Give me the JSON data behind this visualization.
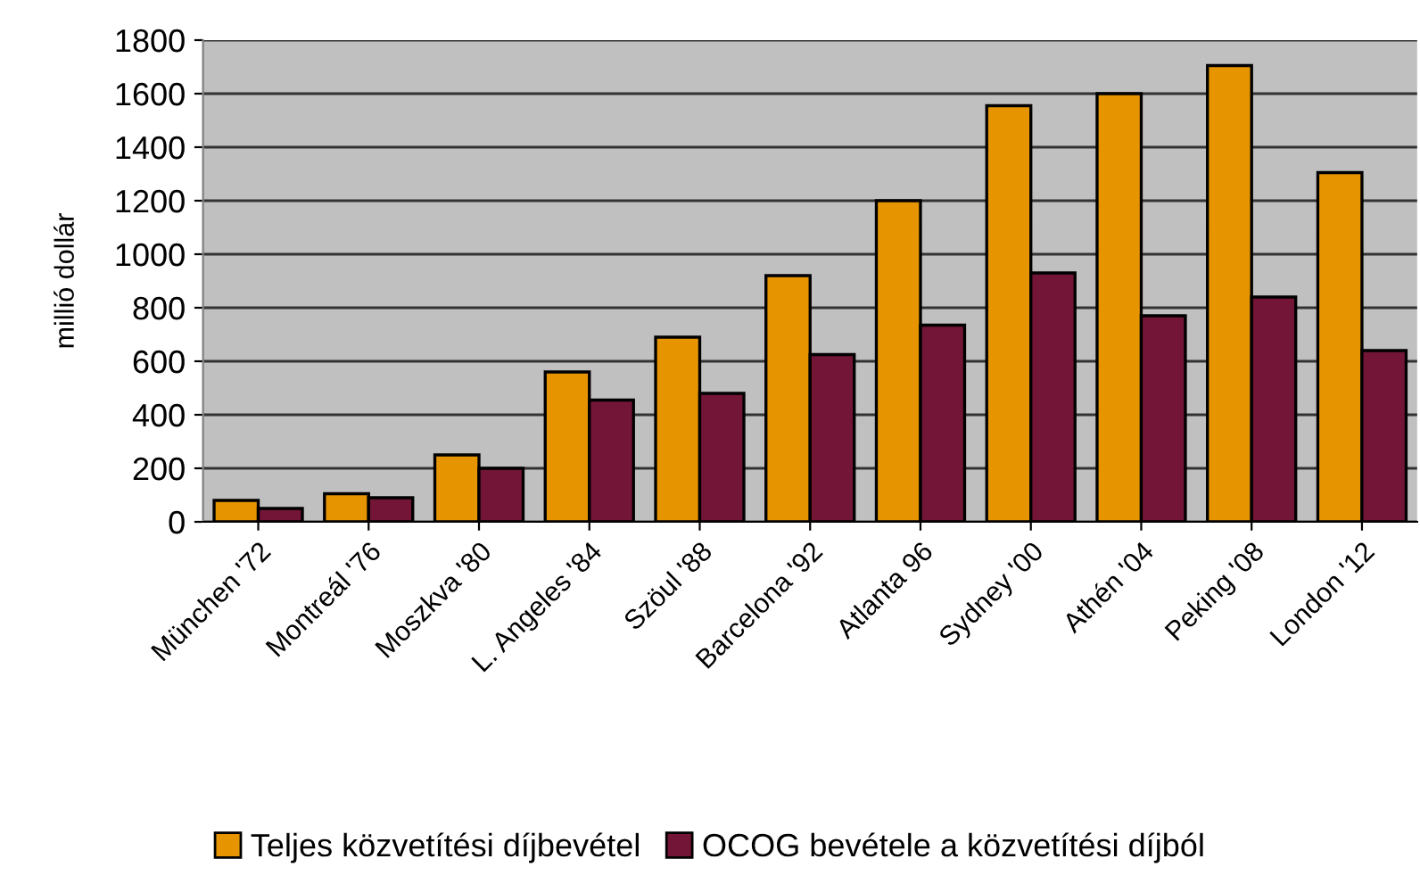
{
  "chart_data": {
    "type": "bar",
    "ylabel": "millió dollár",
    "categories": [
      "München '72",
      "Montreál '76",
      "Moszkva '80",
      "L. Angeles '84",
      "Szöul '88",
      "Barcelona '92",
      "Atlanta 96",
      "Sydney '00",
      "Athén '04",
      "Peking '08",
      "London '12"
    ],
    "series": [
      {
        "name": "Teljes közvetítési díjbevétel",
        "color": "#e69500",
        "values": [
          80,
          105,
          250,
          560,
          690,
          920,
          1200,
          1555,
          1600,
          1705,
          1305
        ]
      },
      {
        "name": "OCOG bevétele a közvetítési díjból",
        "color": "#731537",
        "values": [
          50,
          90,
          200,
          455,
          480,
          625,
          735,
          930,
          770,
          840,
          640
        ]
      }
    ],
    "ylim": [
      0,
      1800
    ],
    "yticks": [
      0,
      200,
      400,
      600,
      800,
      1000,
      1200,
      1400,
      1600,
      1800
    ],
    "grid": "y",
    "legend": "bottom"
  }
}
